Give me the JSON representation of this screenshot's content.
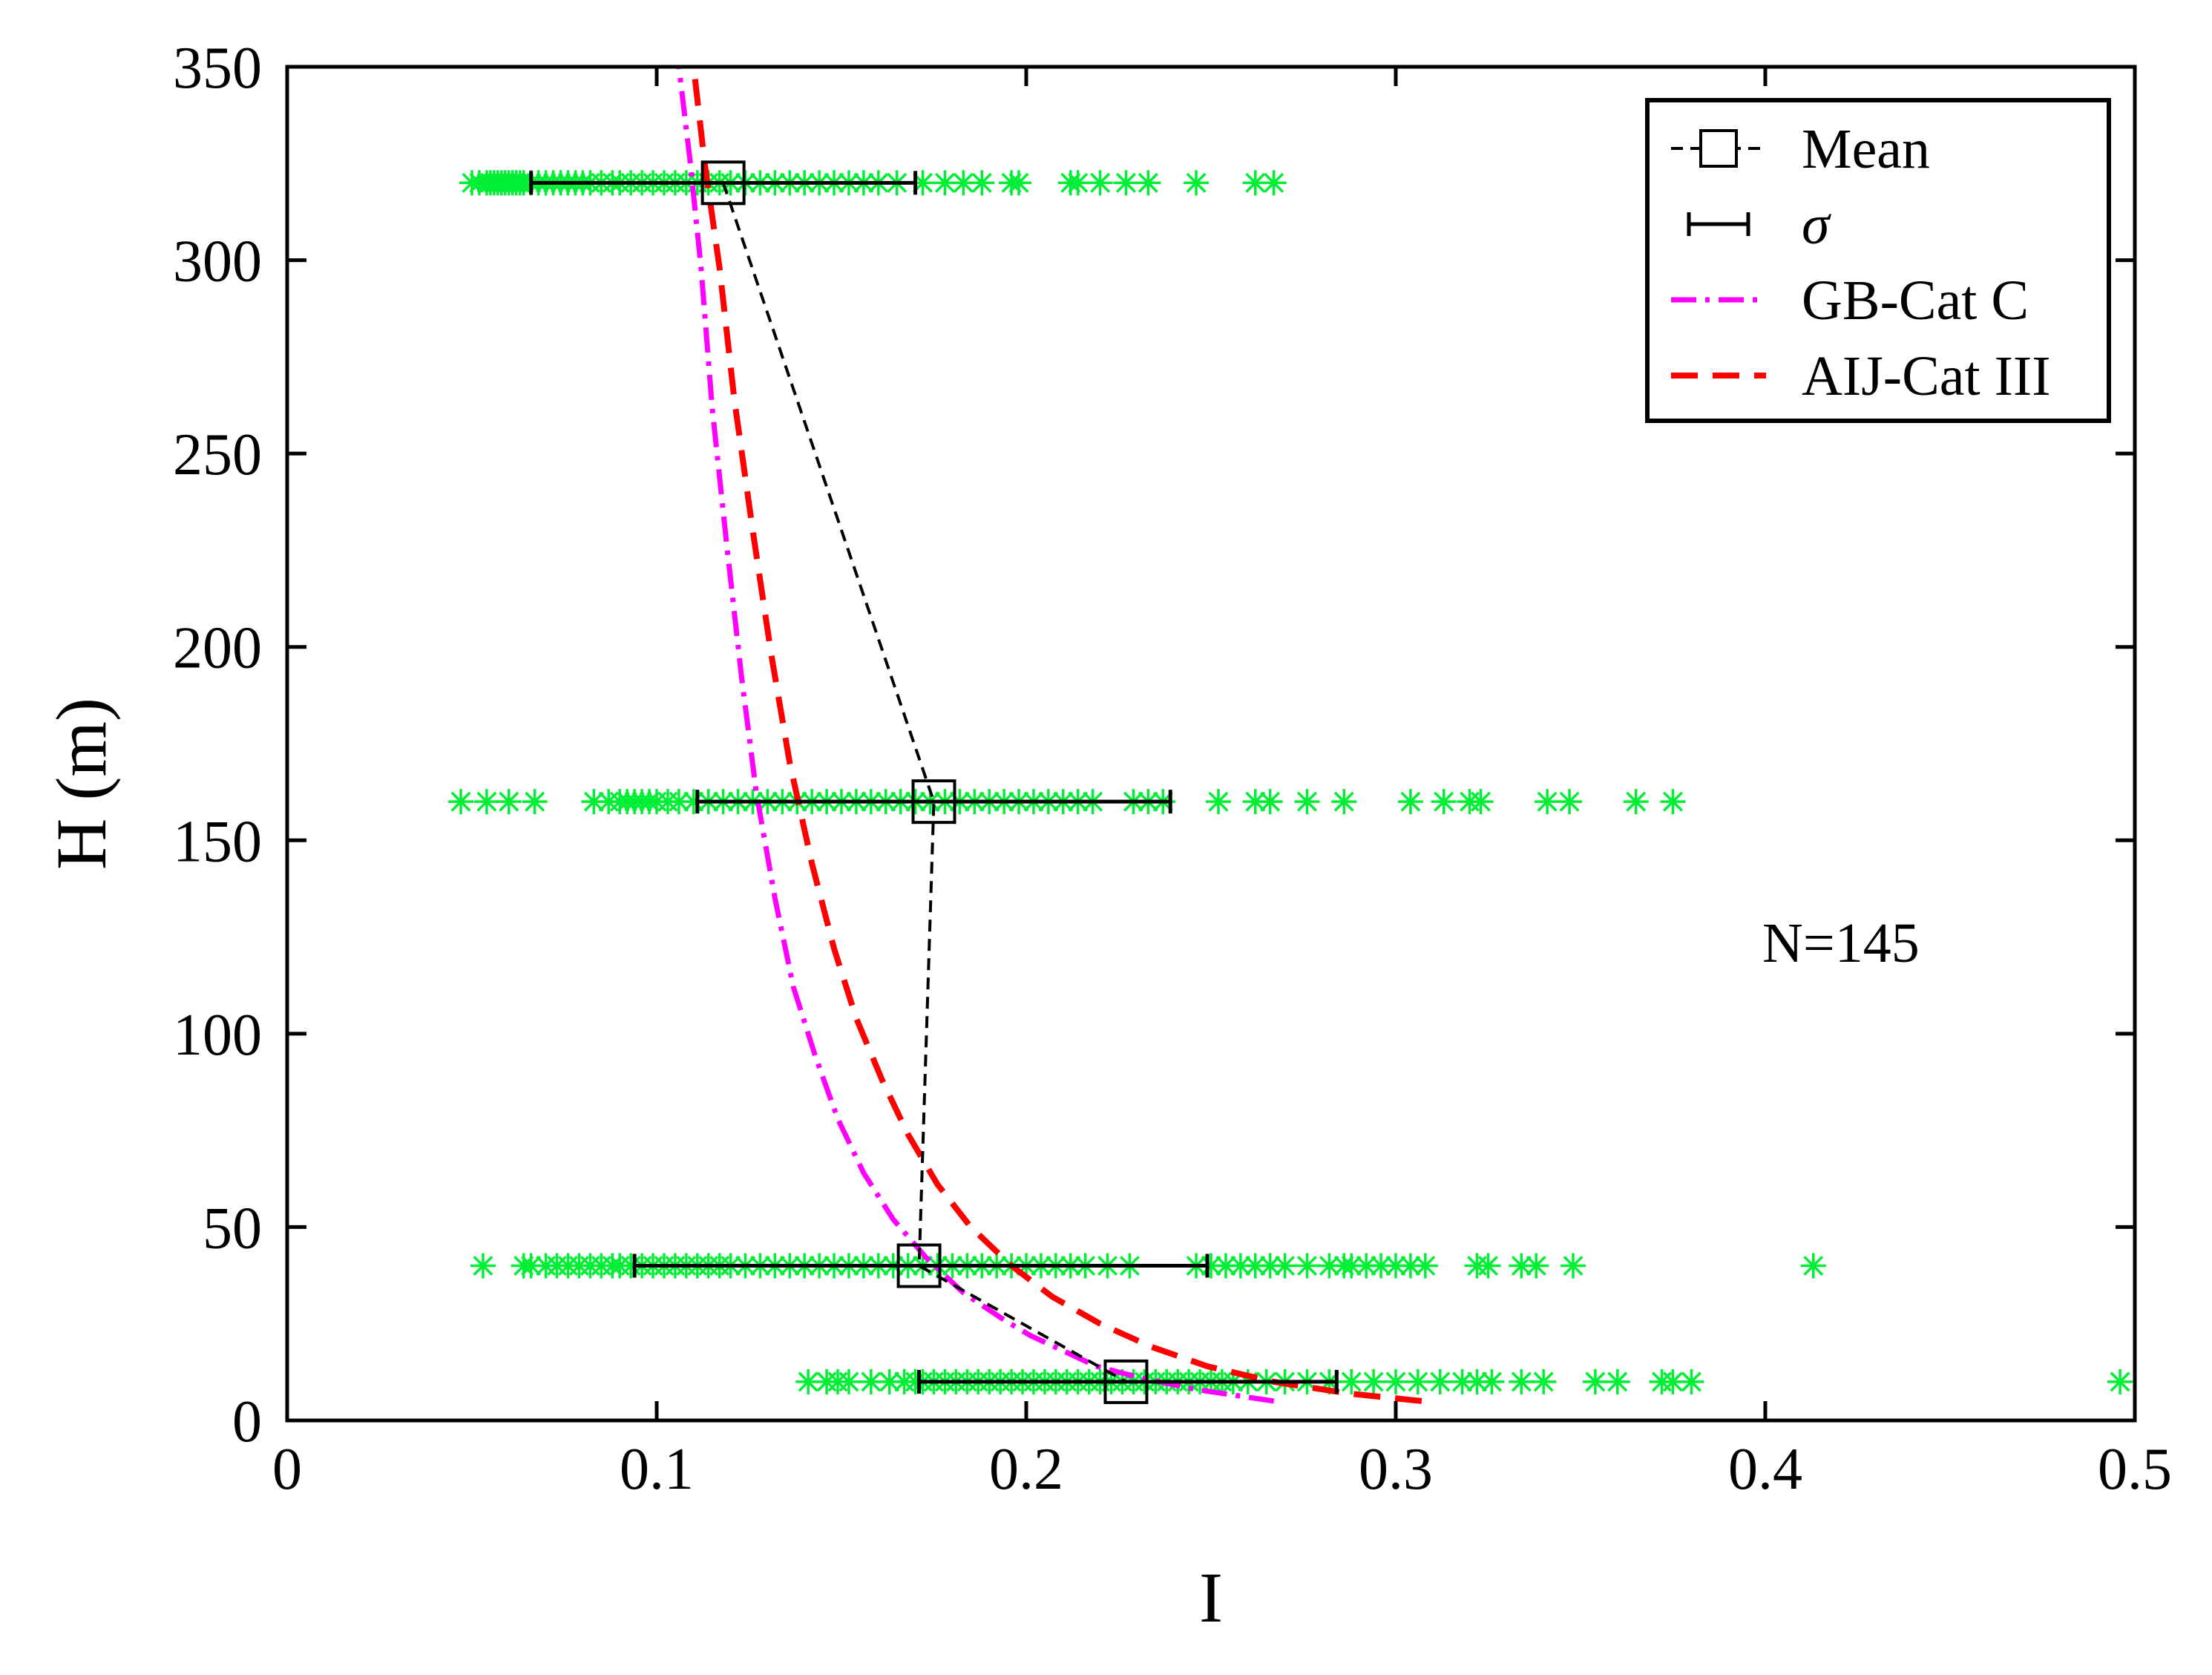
{
  "chart_data": {
    "type": "scatter",
    "title": "",
    "xlabel": "I",
    "ylabel": "H (m)",
    "xlim": [
      0,
      0.5
    ],
    "ylim": [
      0,
      350
    ],
    "xticks": [
      0,
      0.1,
      0.2,
      0.3,
      0.4,
      0.5
    ],
    "xtick_labels": [
      "0",
      "0.1",
      "0.2",
      "0.3",
      "0.4",
      "0.5"
    ],
    "yticks": [
      0,
      50,
      100,
      150,
      200,
      250,
      300,
      350
    ],
    "ytick_labels": [
      "0",
      "50",
      "100",
      "150",
      "200",
      "250",
      "300",
      "350"
    ],
    "grid": false,
    "legend_position": "top-right",
    "legend": [
      {
        "key": "mean",
        "label": "Mean"
      },
      {
        "key": "sigma",
        "label": "σ"
      },
      {
        "key": "gb",
        "label": "GB-Cat C"
      },
      {
        "key": "aij",
        "label": "AIJ-Cat III"
      }
    ],
    "annotation": "N=145",
    "colors": {
      "samples": "#00ee33",
      "mean": "#000000",
      "sigma": "#000000",
      "gb": "#ff00ff",
      "aij": "#ff0000",
      "axis": "#000000"
    },
    "mean": {
      "name": "Mean",
      "points": [
        {
          "x": 0.118,
          "y": 320
        },
        {
          "x": 0.175,
          "y": 160
        },
        {
          "x": 0.171,
          "y": 40
        },
        {
          "x": 0.227,
          "y": 10
        }
      ]
    },
    "sigma": {
      "name": "σ",
      "bars": [
        {
          "y": 320,
          "low": 0.066,
          "high": 0.17
        },
        {
          "y": 160,
          "low": 0.111,
          "high": 0.239
        },
        {
          "y": 40,
          "low": 0.094,
          "high": 0.249
        },
        {
          "y": 10,
          "low": 0.171,
          "high": 0.284
        }
      ]
    },
    "gb_curve": {
      "name": "GB-Cat C",
      "points": [
        [
          0.267,
          5
        ],
        [
          0.246,
          8
        ],
        [
          0.231,
          11
        ],
        [
          0.219,
          14
        ],
        [
          0.21,
          18
        ],
        [
          0.201,
          22
        ],
        [
          0.194,
          26
        ],
        [
          0.183,
          33
        ],
        [
          0.173,
          42
        ],
        [
          0.164,
          52
        ],
        [
          0.156,
          64
        ],
        [
          0.149,
          78
        ],
        [
          0.143,
          94
        ],
        [
          0.137,
          112
        ],
        [
          0.132,
          135
        ],
        [
          0.127,
          162
        ],
        [
          0.123,
          192
        ],
        [
          0.119,
          226
        ],
        [
          0.115,
          262
        ],
        [
          0.112,
          298
        ],
        [
          0.109,
          326
        ],
        [
          0.106,
          350
        ]
      ]
    },
    "aij_curve": {
      "name": "AIJ-Cat III",
      "points": [
        [
          0.307,
          5
        ],
        [
          0.287,
          7
        ],
        [
          0.267,
          10
        ],
        [
          0.249,
          14
        ],
        [
          0.234,
          19
        ],
        [
          0.22,
          25
        ],
        [
          0.207,
          32
        ],
        [
          0.196,
          40
        ],
        [
          0.185,
          50
        ],
        [
          0.176,
          61
        ],
        [
          0.168,
          74
        ],
        [
          0.161,
          88
        ],
        [
          0.154,
          104
        ],
        [
          0.148,
          122
        ],
        [
          0.142,
          144
        ],
        [
          0.136,
          170
        ],
        [
          0.131,
          198
        ],
        [
          0.126,
          230
        ],
        [
          0.121,
          264
        ],
        [
          0.117,
          298
        ],
        [
          0.113,
          325
        ],
        [
          0.11,
          350
        ]
      ]
    },
    "samples": {
      "name": "Samples",
      "groups": [
        {
          "y": 320,
          "x": [
            0.05,
            0.052,
            0.054,
            0.055,
            0.056,
            0.057,
            0.058,
            0.059,
            0.06,
            0.061,
            0.062,
            0.063,
            0.064,
            0.066,
            0.068,
            0.07,
            0.072,
            0.074,
            0.076,
            0.078,
            0.08,
            0.082,
            0.085,
            0.088,
            0.09,
            0.093,
            0.096,
            0.099,
            0.102,
            0.105,
            0.108,
            0.111,
            0.114,
            0.117,
            0.12,
            0.124,
            0.128,
            0.132,
            0.136,
            0.14,
            0.144,
            0.148,
            0.152,
            0.156,
            0.16,
            0.165,
            0.172,
            0.178,
            0.183,
            0.188,
            0.196,
            0.198,
            0.212,
            0.214,
            0.22,
            0.227,
            0.233,
            0.246,
            0.262,
            0.267
          ]
        },
        {
          "y": 160,
          "x": [
            0.047,
            0.054,
            0.06,
            0.067,
            0.083,
            0.087,
            0.09,
            0.092,
            0.094,
            0.096,
            0.098,
            0.1,
            0.103,
            0.106,
            0.11,
            0.114,
            0.118,
            0.122,
            0.126,
            0.13,
            0.134,
            0.138,
            0.142,
            0.146,
            0.15,
            0.154,
            0.158,
            0.162,
            0.166,
            0.17,
            0.174,
            0.178,
            0.182,
            0.186,
            0.19,
            0.194,
            0.198,
            0.202,
            0.206,
            0.21,
            0.214,
            0.218,
            0.229,
            0.233,
            0.237,
            0.252,
            0.262,
            0.266,
            0.276,
            0.286,
            0.304,
            0.313,
            0.32,
            0.323,
            0.341,
            0.347,
            0.365,
            0.375
          ]
        },
        {
          "y": 40,
          "x": [
            0.053,
            0.064,
            0.066,
            0.07,
            0.073,
            0.076,
            0.079,
            0.082,
            0.085,
            0.088,
            0.09,
            0.093,
            0.096,
            0.099,
            0.102,
            0.105,
            0.108,
            0.111,
            0.114,
            0.117,
            0.12,
            0.124,
            0.128,
            0.132,
            0.136,
            0.14,
            0.144,
            0.148,
            0.152,
            0.156,
            0.16,
            0.164,
            0.168,
            0.172,
            0.176,
            0.18,
            0.184,
            0.188,
            0.192,
            0.196,
            0.2,
            0.204,
            0.208,
            0.212,
            0.216,
            0.222,
            0.228,
            0.246,
            0.25,
            0.254,
            0.258,
            0.262,
            0.266,
            0.27,
            0.276,
            0.282,
            0.286,
            0.288,
            0.292,
            0.296,
            0.3,
            0.304,
            0.308,
            0.322,
            0.325,
            0.334,
            0.338,
            0.348,
            0.413
          ]
        },
        {
          "y": 10,
          "x": [
            0.141,
            0.146,
            0.149,
            0.152,
            0.158,
            0.163,
            0.167,
            0.17,
            0.172,
            0.175,
            0.178,
            0.181,
            0.184,
            0.187,
            0.19,
            0.193,
            0.196,
            0.199,
            0.202,
            0.205,
            0.208,
            0.211,
            0.214,
            0.217,
            0.22,
            0.223,
            0.226,
            0.229,
            0.232,
            0.235,
            0.238,
            0.241,
            0.244,
            0.247,
            0.25,
            0.253,
            0.256,
            0.26,
            0.265,
            0.27,
            0.276,
            0.282,
            0.288,
            0.294,
            0.3,
            0.306,
            0.312,
            0.318,
            0.322,
            0.326,
            0.334,
            0.34,
            0.354,
            0.36,
            0.372,
            0.375,
            0.38,
            0.496
          ]
        }
      ]
    }
  }
}
